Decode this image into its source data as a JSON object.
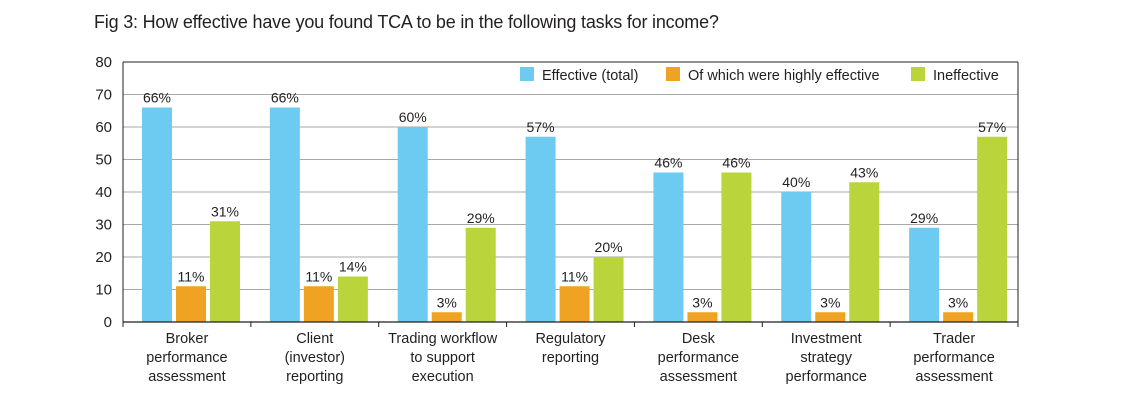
{
  "chart_data": {
    "type": "bar",
    "title": "Fig 3: How effective have you found TCA to be in the following tasks for income?",
    "xlabel": "",
    "ylabel": "",
    "ylim": [
      0,
      80
    ],
    "yticks": [
      0,
      10,
      20,
      30,
      40,
      50,
      60,
      70,
      80
    ],
    "grid": true,
    "legend_position": "top-right",
    "categories": [
      [
        "Broker",
        "performance",
        "assessment"
      ],
      [
        "Client",
        "(investor)",
        "reporting"
      ],
      [
        "Trading workflow",
        "to support",
        "execution"
      ],
      [
        "Regulatory",
        "reporting"
      ],
      [
        "Desk",
        "performance",
        "assessment"
      ],
      [
        "Investment",
        "strategy",
        "performance"
      ],
      [
        "Trader",
        "performance",
        "assessment"
      ]
    ],
    "series": [
      {
        "name": "Effective (total)",
        "color": "#6dcaf0",
        "values": [
          66,
          66,
          60,
          57,
          46,
          40,
          29
        ],
        "labels": [
          "66%",
          "66%",
          "60%",
          "57%",
          "46%",
          "40%",
          "29%"
        ]
      },
      {
        "name": "Of which were highly effective",
        "color": "#f0a323",
        "values": [
          11,
          11,
          3,
          11,
          3,
          3,
          3
        ],
        "labels": [
          "11%",
          "11%",
          "3%",
          "11%",
          "3%",
          "3%",
          "3%"
        ]
      },
      {
        "name": "Ineffective",
        "color": "#b9d53b",
        "values": [
          31,
          14,
          29,
          20,
          46,
          43,
          57
        ],
        "labels": [
          "31%",
          "14%",
          "29%",
          "20%",
          "46%",
          "43%",
          "57%"
        ]
      }
    ]
  }
}
